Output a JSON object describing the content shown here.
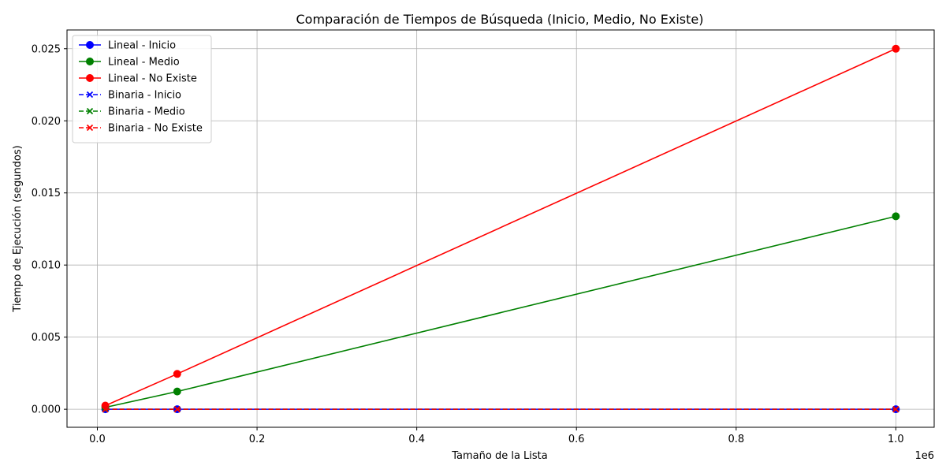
{
  "chart_data": {
    "type": "line",
    "title": "Comparación de Tiempos de Búsqueda (Inicio, Medio, No Existe)",
    "xlabel": "Tamaño de la Lista",
    "ylabel": "Tiempo de Ejecución (segundos)",
    "x_offset_label": "1e6",
    "x_ticks": [
      0.0,
      0.2,
      0.4,
      0.6,
      0.8,
      1.0
    ],
    "x_tick_labels": [
      "0.0",
      "0.2",
      "0.4",
      "0.6",
      "0.8",
      "1.0"
    ],
    "y_ticks": [
      0.0,
      0.005,
      0.01,
      0.015,
      0.02,
      0.025
    ],
    "y_tick_labels": [
      "0.000",
      "0.005",
      "0.010",
      "0.015",
      "0.020",
      "0.025"
    ],
    "xlim": [
      -0.038,
      1.048
    ],
    "ylim": [
      -0.00125,
      0.0263
    ],
    "grid": true,
    "legend_position": "top-left",
    "x": [
      0.01,
      0.1,
      1.0
    ],
    "series": [
      {
        "name": "Lineal - Inicio",
        "color": "#0000ff",
        "style": "solid",
        "marker": "circle",
        "values": [
          0.0,
          0.0,
          0.0
        ]
      },
      {
        "name": "Lineal - Medio",
        "color": "#008000",
        "style": "solid",
        "marker": "circle",
        "values": [
          0.00013,
          0.00123,
          0.01338
        ]
      },
      {
        "name": "Lineal - No Existe",
        "color": "#ff0000",
        "style": "solid",
        "marker": "circle",
        "values": [
          0.00025,
          0.00245,
          0.025
        ]
      },
      {
        "name": "Binaria - Inicio",
        "color": "#0000ff",
        "style": "dashed",
        "marker": "x",
        "values": [
          0.0,
          0.0,
          0.0
        ]
      },
      {
        "name": "Binaria - Medio",
        "color": "#008000",
        "style": "dashed",
        "marker": "x",
        "values": [
          0.0,
          0.0,
          0.0
        ]
      },
      {
        "name": "Binaria - No Existe",
        "color": "#ff0000",
        "style": "dashed",
        "marker": "x",
        "values": [
          0.0,
          0.0,
          0.0
        ]
      }
    ]
  }
}
